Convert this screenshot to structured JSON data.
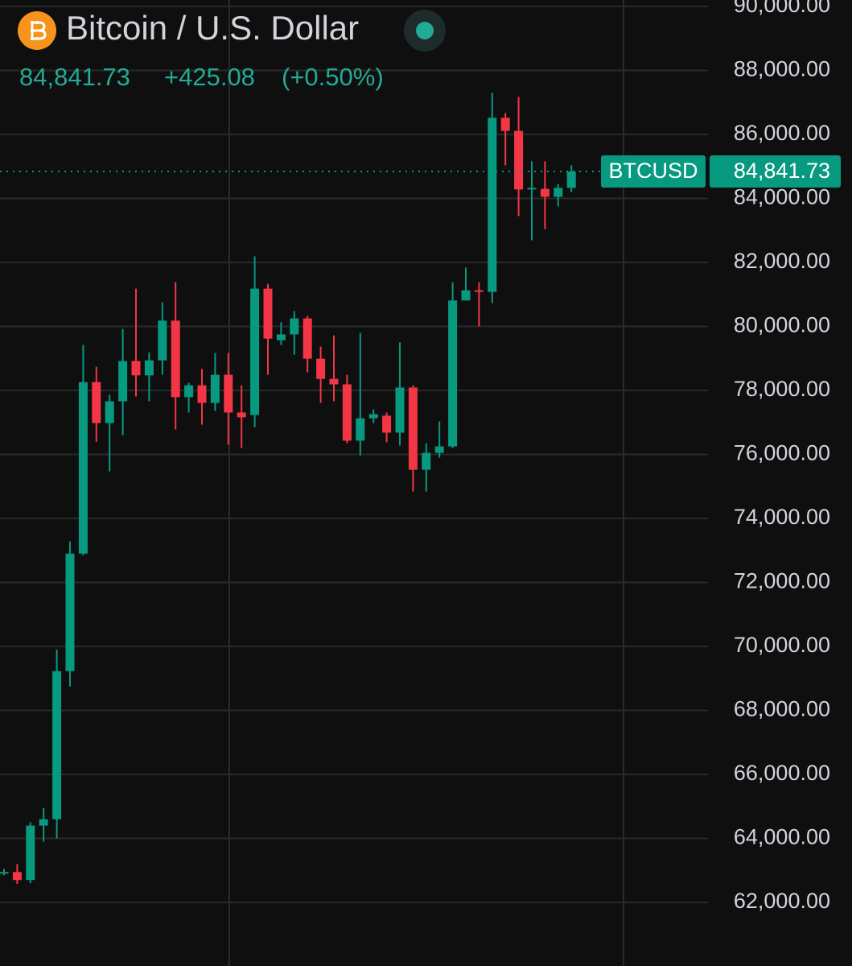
{
  "chart_data": {
    "type": "candlestick",
    "title": "Bitcoin / U.S. Dollar",
    "symbol": "BTCUSD",
    "last_price": {
      "value": 84841.73,
      "label": "84,841.73"
    },
    "change": {
      "value": 425.08,
      "label": "+425.08"
    },
    "change_percent": {
      "value": 0.5,
      "label": "(+0.50%)"
    },
    "up_color": "#089981",
    "down_color": "#f23645",
    "grid": true,
    "ylim": [
      60013,
      90201
    ],
    "yticks": [
      {
        "value": 62000,
        "label": "62,000.00"
      },
      {
        "value": 64000,
        "label": "64,000.00"
      },
      {
        "value": 66000,
        "label": "66,000.00"
      },
      {
        "value": 68000,
        "label": "68,000.00"
      },
      {
        "value": 70000,
        "label": "70,000.00"
      },
      {
        "value": 72000,
        "label": "72,000.00"
      },
      {
        "value": 74000,
        "label": "74,000.00"
      },
      {
        "value": 76000,
        "label": "76,000.00"
      },
      {
        "value": 78000,
        "label": "78,000.00"
      },
      {
        "value": 80000,
        "label": "80,000.00"
      },
      {
        "value": 82000,
        "label": "82,000.00"
      },
      {
        "value": 84000,
        "label": "84,000.00"
      },
      {
        "value": 86000,
        "label": "86,000.00"
      },
      {
        "value": 88000,
        "label": "88,000.00"
      },
      {
        "value": 90000,
        "label": "90,000.00"
      }
    ],
    "open": [
      62900,
      62950,
      62700,
      64400,
      64600,
      69230,
      72900,
      78260,
      76980,
      77660,
      78920,
      78470,
      78940,
      80180,
      77790,
      78160,
      77610,
      78490,
      77310,
      77230,
      81180,
      79570,
      79750,
      80250,
      78990,
      78360,
      78190,
      76430,
      77130,
      77210,
      76680,
      78090,
      75520,
      76050,
      76250,
      80810,
      81130,
      81080,
      86520,
      86110,
      84280,
      84300,
      84050,
      84330
    ],
    "high": [
      63050,
      63200,
      64500,
      64950,
      69900,
      73280,
      79420,
      78740,
      77860,
      79920,
      81180,
      79190,
      80750,
      81380,
      78240,
      78670,
      79170,
      79170,
      78160,
      82190,
      81330,
      80130,
      80480,
      80330,
      79370,
      79720,
      78490,
      79800,
      77410,
      77310,
      79500,
      78160,
      76350,
      77030,
      81380,
      81840,
      81380,
      87300,
      86670,
      87170,
      85160,
      85160,
      84450,
      85030
    ],
    "low": [
      62850,
      62580,
      62600,
      63900,
      64000,
      68750,
      72850,
      76400,
      75470,
      76600,
      77810,
      77660,
      78490,
      76780,
      77310,
      76930,
      77360,
      76300,
      76200,
      76850,
      78490,
      79420,
      79120,
      78570,
      77610,
      77660,
      76350,
      75970,
      76980,
      76380,
      76280,
      74840,
      74840,
      75900,
      76200,
      80830,
      80000,
      80730,
      85030,
      83450,
      82690,
      83040,
      83750,
      84200
    ],
    "close": [
      62950,
      62700,
      64400,
      64600,
      69230,
      72900,
      78260,
      76980,
      77660,
      78920,
      78470,
      78940,
      80180,
      77790,
      78160,
      77610,
      78490,
      77310,
      77160,
      81180,
      79620,
      79750,
      80250,
      78990,
      78360,
      78190,
      76430,
      77130,
      77260,
      76680,
      78090,
      75520,
      76050,
      76250,
      80810,
      81130,
      81080,
      86520,
      86110,
      84280,
      84330,
      84050,
      84330,
      84841.73
    ]
  }
}
